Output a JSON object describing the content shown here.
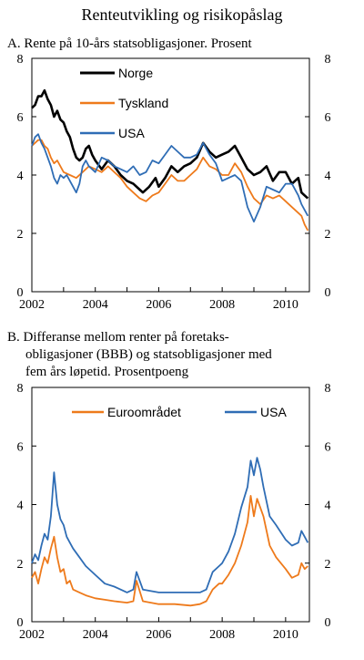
{
  "figure_title": "Renteutvikling og risikopåslag",
  "colors": {
    "norge": "#000000",
    "tyskland": "#ee7a1b",
    "usa": "#2f6db5",
    "euro": "#ee7a1b",
    "usa_b": "#2f6db5",
    "axis": "#000000",
    "bg": "#ffffff"
  },
  "chart_data": [
    {
      "type": "line",
      "title": "A. Rente på 10-års statsobligasjoner. Prosent",
      "xlabel": "",
      "ylabel": "",
      "xlim": [
        2002.0,
        2010.75
      ],
      "ylim": [
        0,
        8
      ],
      "yticks": [
        0,
        2,
        4,
        6,
        8
      ],
      "xtick_labels": [
        "2002",
        "2004",
        "2006",
        "2008",
        "2010"
      ],
      "legend_position": "top-center",
      "grid": false,
      "series": [
        {
          "name": "Norge",
          "color": "#000000",
          "x": [
            2002.0,
            2002.1,
            2002.2,
            2002.3,
            2002.4,
            2002.5,
            2002.6,
            2002.7,
            2002.8,
            2002.9,
            2003.0,
            2003.1,
            2003.2,
            2003.3,
            2003.4,
            2003.5,
            2003.6,
            2003.7,
            2003.8,
            2003.9,
            2004.0,
            2004.2,
            2004.4,
            2004.6,
            2004.8,
            2005.0,
            2005.2,
            2005.4,
            2005.5,
            2005.7,
            2005.9,
            2006.0,
            2006.2,
            2006.4,
            2006.6,
            2006.8,
            2007.0,
            2007.2,
            2007.4,
            2007.6,
            2007.8,
            2008.0,
            2008.2,
            2008.4,
            2008.6,
            2008.8,
            2009.0,
            2009.2,
            2009.4,
            2009.6,
            2009.8,
            2010.0,
            2010.2,
            2010.4,
            2010.5,
            2010.6,
            2010.7
          ],
          "y": [
            6.3,
            6.4,
            6.7,
            6.7,
            6.9,
            6.6,
            6.4,
            6.0,
            6.2,
            5.9,
            5.8,
            5.5,
            5.3,
            4.9,
            4.6,
            4.5,
            4.6,
            4.9,
            5.0,
            4.7,
            4.5,
            4.2,
            4.5,
            4.3,
            4.0,
            3.8,
            3.7,
            3.5,
            3.4,
            3.6,
            3.9,
            3.6,
            3.9,
            4.3,
            4.1,
            4.3,
            4.4,
            4.6,
            5.1,
            4.8,
            4.6,
            4.7,
            4.8,
            5.0,
            4.6,
            4.2,
            4.0,
            4.1,
            4.3,
            3.8,
            4.1,
            4.1,
            3.7,
            3.9,
            3.4,
            3.3,
            3.2
          ]
        },
        {
          "name": "Tyskland",
          "color": "#ee7a1b",
          "x": [
            2002.0,
            2002.1,
            2002.2,
            2002.3,
            2002.4,
            2002.5,
            2002.6,
            2002.7,
            2002.8,
            2002.9,
            2003.0,
            2003.2,
            2003.4,
            2003.6,
            2003.8,
            2004.0,
            2004.2,
            2004.4,
            2004.6,
            2004.8,
            2005.0,
            2005.2,
            2005.4,
            2005.6,
            2005.8,
            2006.0,
            2006.2,
            2006.4,
            2006.6,
            2006.8,
            2007.0,
            2007.2,
            2007.4,
            2007.6,
            2007.8,
            2008.0,
            2008.2,
            2008.4,
            2008.6,
            2008.8,
            2009.0,
            2009.2,
            2009.4,
            2009.6,
            2009.8,
            2010.0,
            2010.2,
            2010.4,
            2010.5,
            2010.6,
            2010.7
          ],
          "y": [
            5.0,
            5.1,
            5.2,
            5.2,
            5.0,
            4.9,
            4.6,
            4.4,
            4.5,
            4.3,
            4.1,
            4.0,
            3.9,
            4.1,
            4.3,
            4.2,
            4.1,
            4.3,
            4.1,
            3.9,
            3.6,
            3.4,
            3.2,
            3.1,
            3.3,
            3.4,
            3.7,
            4.0,
            3.8,
            3.8,
            4.0,
            4.2,
            4.6,
            4.3,
            4.2,
            4.0,
            4.0,
            4.4,
            4.1,
            3.6,
            3.2,
            3.0,
            3.3,
            3.2,
            3.3,
            3.1,
            2.9,
            2.7,
            2.6,
            2.3,
            2.1
          ]
        },
        {
          "name": "USA",
          "color": "#2f6db5",
          "x": [
            2002.0,
            2002.1,
            2002.2,
            2002.3,
            2002.4,
            2002.5,
            2002.6,
            2002.7,
            2002.8,
            2002.9,
            2003.0,
            2003.1,
            2003.2,
            2003.3,
            2003.4,
            2003.5,
            2003.6,
            2003.7,
            2003.8,
            2003.9,
            2004.0,
            2004.2,
            2004.4,
            2004.6,
            2004.8,
            2005.0,
            2005.2,
            2005.4,
            2005.6,
            2005.8,
            2006.0,
            2006.2,
            2006.4,
            2006.6,
            2006.8,
            2007.0,
            2007.2,
            2007.4,
            2007.6,
            2007.8,
            2008.0,
            2008.2,
            2008.4,
            2008.6,
            2008.8,
            2009.0,
            2009.2,
            2009.4,
            2009.6,
            2009.8,
            2010.0,
            2010.2,
            2010.4,
            2010.5,
            2010.6,
            2010.7
          ],
          "y": [
            5.0,
            5.3,
            5.4,
            5.1,
            4.9,
            4.6,
            4.3,
            3.9,
            3.7,
            4.0,
            3.9,
            4.0,
            3.8,
            3.6,
            3.4,
            3.7,
            4.3,
            4.5,
            4.3,
            4.2,
            4.1,
            4.6,
            4.5,
            4.3,
            4.2,
            4.1,
            4.3,
            4.0,
            4.1,
            4.5,
            4.4,
            4.7,
            5.0,
            4.8,
            4.6,
            4.6,
            4.7,
            5.1,
            4.7,
            4.4,
            3.8,
            3.9,
            4.0,
            3.8,
            2.9,
            2.4,
            2.9,
            3.6,
            3.5,
            3.4,
            3.7,
            3.7,
            3.3,
            3.0,
            2.8,
            2.6
          ]
        }
      ]
    },
    {
      "type": "line",
      "title": "B. Differanse mellom renter på foretaks-obligasjoner (BBB) og statsobligasjoner med fem års løpetid. Prosentpoeng",
      "title_lines": [
        "B. Differanse mellom renter på foretaks-",
        "obligasjoner (BBB) og statsobligasjoner med",
        "fem års løpetid. Prosentpoeng"
      ],
      "xlabel": "",
      "ylabel": "",
      "xlim": [
        2002.0,
        2010.75
      ],
      "ylim": [
        0,
        8
      ],
      "yticks": [
        0,
        2,
        4,
        6,
        8
      ],
      "xtick_labels": [
        "2002",
        "2004",
        "2006",
        "2008",
        "2010"
      ],
      "legend_position": "top-center",
      "grid": false,
      "series": [
        {
          "name": "Euroområdet",
          "color": "#ee7a1b",
          "x": [
            2002.0,
            2002.1,
            2002.2,
            2002.3,
            2002.4,
            2002.5,
            2002.6,
            2002.7,
            2002.8,
            2002.9,
            2003.0,
            2003.1,
            2003.2,
            2003.3,
            2003.5,
            2003.7,
            2004.0,
            2004.3,
            2004.6,
            2005.0,
            2005.2,
            2005.3,
            2005.5,
            2006.0,
            2006.5,
            2007.0,
            2007.3,
            2007.5,
            2007.7,
            2007.9,
            2008.0,
            2008.2,
            2008.4,
            2008.6,
            2008.8,
            2008.9,
            2009.0,
            2009.1,
            2009.2,
            2009.3,
            2009.5,
            2009.7,
            2010.0,
            2010.2,
            2010.4,
            2010.5,
            2010.6,
            2010.7
          ],
          "y": [
            1.5,
            1.7,
            1.3,
            1.8,
            2.2,
            2.0,
            2.5,
            2.9,
            2.2,
            1.7,
            1.8,
            1.3,
            1.4,
            1.1,
            1.0,
            0.9,
            0.8,
            0.75,
            0.7,
            0.65,
            0.7,
            1.4,
            0.7,
            0.6,
            0.6,
            0.55,
            0.6,
            0.7,
            1.1,
            1.3,
            1.3,
            1.6,
            2.0,
            2.6,
            3.4,
            4.3,
            3.6,
            4.2,
            3.9,
            3.6,
            2.6,
            2.2,
            1.8,
            1.5,
            1.6,
            2.0,
            1.8,
            1.9
          ]
        },
        {
          "name": "USA",
          "color": "#2f6db5",
          "x": [
            2002.0,
            2002.1,
            2002.2,
            2002.3,
            2002.4,
            2002.5,
            2002.6,
            2002.7,
            2002.8,
            2002.9,
            2003.0,
            2003.1,
            2003.2,
            2003.3,
            2003.5,
            2003.7,
            2004.0,
            2004.3,
            2004.6,
            2005.0,
            2005.2,
            2005.3,
            2005.5,
            2006.0,
            2006.5,
            2007.0,
            2007.3,
            2007.5,
            2007.7,
            2007.9,
            2008.0,
            2008.2,
            2008.4,
            2008.6,
            2008.8,
            2008.9,
            2009.0,
            2009.1,
            2009.2,
            2009.3,
            2009.5,
            2009.7,
            2010.0,
            2010.2,
            2010.4,
            2010.5,
            2010.6,
            2010.7
          ],
          "y": [
            2.0,
            2.3,
            2.1,
            2.6,
            3.0,
            2.8,
            3.6,
            5.1,
            4.0,
            3.5,
            3.3,
            2.9,
            2.7,
            2.5,
            2.2,
            1.9,
            1.6,
            1.3,
            1.2,
            1.0,
            1.1,
            1.7,
            1.1,
            1.0,
            1.0,
            1.0,
            1.0,
            1.1,
            1.7,
            1.9,
            2.0,
            2.4,
            3.0,
            3.9,
            4.6,
            5.5,
            5.0,
            5.6,
            5.2,
            4.6,
            3.6,
            3.3,
            2.8,
            2.6,
            2.7,
            3.1,
            2.9,
            2.7
          ]
        }
      ]
    }
  ]
}
